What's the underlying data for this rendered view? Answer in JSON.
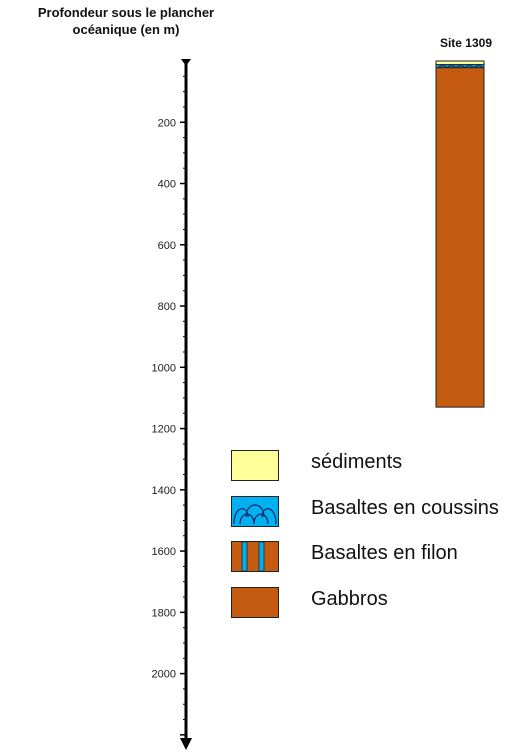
{
  "axis": {
    "title_line1": "Profondeur sous le plancher",
    "title_line2": "océanique  (en m)",
    "tick_labels": [
      "200",
      "400",
      "600",
      "800",
      "1000",
      "1200",
      "1400",
      "1600",
      "1800",
      "2000"
    ]
  },
  "column": {
    "site_label": "Site 1309",
    "layers": [
      {
        "name": "sediments",
        "top_m": 0,
        "bottom_m": 12
      },
      {
        "name": "pillow-basalts",
        "top_m": 12,
        "bottom_m": 22
      },
      {
        "name": "gabbros",
        "top_m": 22,
        "bottom_m": 1130
      }
    ]
  },
  "legend": {
    "sediments": "sédiments",
    "pillow_basalts": "Basaltes en coussins",
    "dike_basalts": "Basaltes en filon",
    "gabbros": "Gabbros"
  },
  "colors": {
    "sediments": "#ffff99",
    "pillow_basalts": "#00b0f0",
    "gabbros": "#c55a11",
    "axis": "#000000"
  }
}
